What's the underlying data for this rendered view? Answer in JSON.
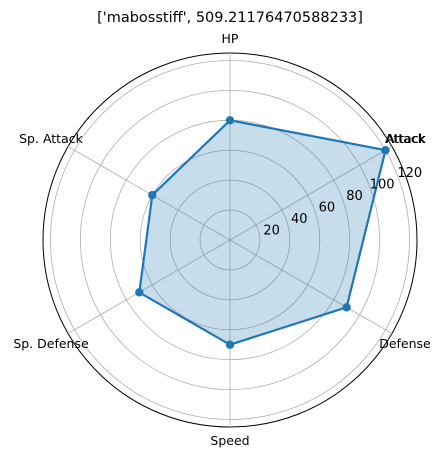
{
  "chart_data": {
    "type": "radar",
    "title": "['mabosstiff', 509.21176470588233]",
    "categories": [
      "HP",
      "Attack",
      "Defense",
      "Speed",
      "Sp. Defense",
      "Sp. Attack"
    ],
    "category_label_duplicate": "Attack",
    "values": [
      80,
      120,
      90,
      70,
      70,
      60
    ],
    "r_ticks": [
      "20",
      "40",
      "60",
      "80",
      "100",
      "120"
    ],
    "r_max": 125,
    "grid": true,
    "colors": {
      "line": "#1f77b4",
      "fill": "#1f77b4",
      "grid": "#b0b0b0"
    }
  }
}
